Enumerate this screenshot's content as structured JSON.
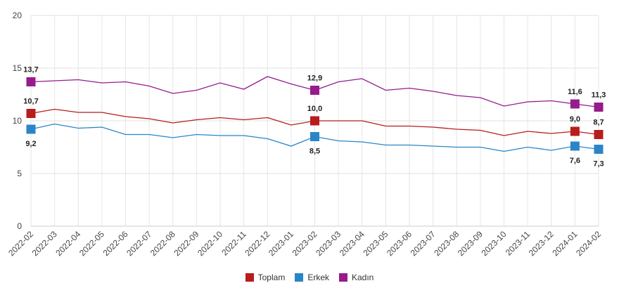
{
  "chart_data": {
    "type": "line",
    "title": "",
    "xlabel": "",
    "ylabel": "",
    "ylim": [
      0,
      20
    ],
    "yticks": [
      "0",
      "5",
      "10",
      "15",
      "20"
    ],
    "grid": true,
    "legend_position": "bottom",
    "x": [
      "2022-02",
      "2022-03",
      "2022-04",
      "2022-05",
      "2022-06",
      "2022-07",
      "2022-08",
      "2022-09",
      "2022-10",
      "2022-11",
      "2022-12",
      "2023-01",
      "2023-02",
      "2023-03",
      "2023-04",
      "2023-05",
      "2023-06",
      "2023-07",
      "2023-08",
      "2023-09",
      "2023-10",
      "2023-11",
      "2023-12",
      "2024-01",
      "2024-02"
    ],
    "labeled_indices": [
      0,
      12,
      23,
      24
    ],
    "series": [
      {
        "name": "Toplam",
        "color": "#b81c1c",
        "label_pos": "above",
        "values": [
          10.7,
          11.1,
          10.8,
          10.8,
          10.4,
          10.2,
          9.8,
          10.1,
          10.3,
          10.1,
          10.3,
          9.6,
          10.0,
          10.0,
          10.0,
          9.5,
          9.5,
          9.4,
          9.2,
          9.1,
          8.6,
          9.0,
          8.8,
          9.0,
          8.7
        ],
        "labels": [
          "10,7",
          "10,0",
          "9,0",
          "8,7"
        ]
      },
      {
        "name": "Erkek",
        "color": "#2a85c8",
        "label_pos": "below",
        "values": [
          9.2,
          9.7,
          9.3,
          9.4,
          8.7,
          8.7,
          8.4,
          8.7,
          8.6,
          8.6,
          8.3,
          7.6,
          8.5,
          8.1,
          8.0,
          7.7,
          7.7,
          7.6,
          7.5,
          7.5,
          7.1,
          7.5,
          7.2,
          7.6,
          7.3
        ],
        "labels": [
          "9,2",
          "8,5",
          "7,6",
          "7,3"
        ]
      },
      {
        "name": "Kadın",
        "color": "#961b8c",
        "label_pos": "above",
        "values": [
          13.7,
          13.8,
          13.9,
          13.6,
          13.7,
          13.3,
          12.6,
          12.9,
          13.6,
          13.0,
          14.2,
          13.5,
          12.9,
          13.7,
          14.0,
          12.9,
          13.1,
          12.8,
          12.4,
          12.2,
          11.4,
          11.8,
          11.9,
          11.6,
          11.3
        ],
        "labels": [
          "13,7",
          "12,9",
          "11,6",
          "11,3"
        ]
      }
    ]
  }
}
